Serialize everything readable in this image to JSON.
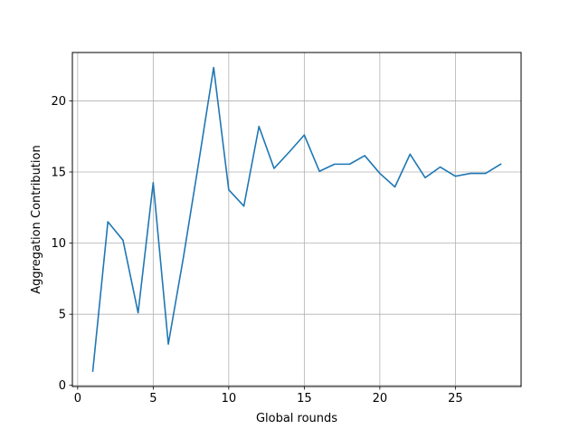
{
  "chart_data": {
    "type": "line",
    "title": "",
    "xlabel": "Global rounds",
    "ylabel": "Aggregation Contribution",
    "xlim": [
      -0.35,
      29.35
    ],
    "ylim": [
      -0.08,
      23.4
    ],
    "xticks": [
      0,
      5,
      10,
      15,
      20,
      25
    ],
    "yticks": [
      0,
      5,
      10,
      15,
      20
    ],
    "grid": true,
    "series": [
      {
        "color": "#1f77b4",
        "x": [
          1,
          2,
          3,
          4,
          5,
          6,
          7,
          8,
          9,
          10,
          11,
          12,
          13,
          14,
          15,
          16,
          17,
          18,
          19,
          20,
          21,
          22,
          23,
          24,
          25,
          26,
          27,
          28
        ],
        "values": [
          1.0,
          11.5,
          10.2,
          5.1,
          14.25,
          2.9,
          9.0,
          15.6,
          22.35,
          13.75,
          12.6,
          18.2,
          15.25,
          16.4,
          17.6,
          15.05,
          15.55,
          15.55,
          16.15,
          14.9,
          13.95,
          16.25,
          14.6,
          15.35,
          14.7,
          14.9,
          14.9,
          15.55
        ]
      }
    ]
  }
}
